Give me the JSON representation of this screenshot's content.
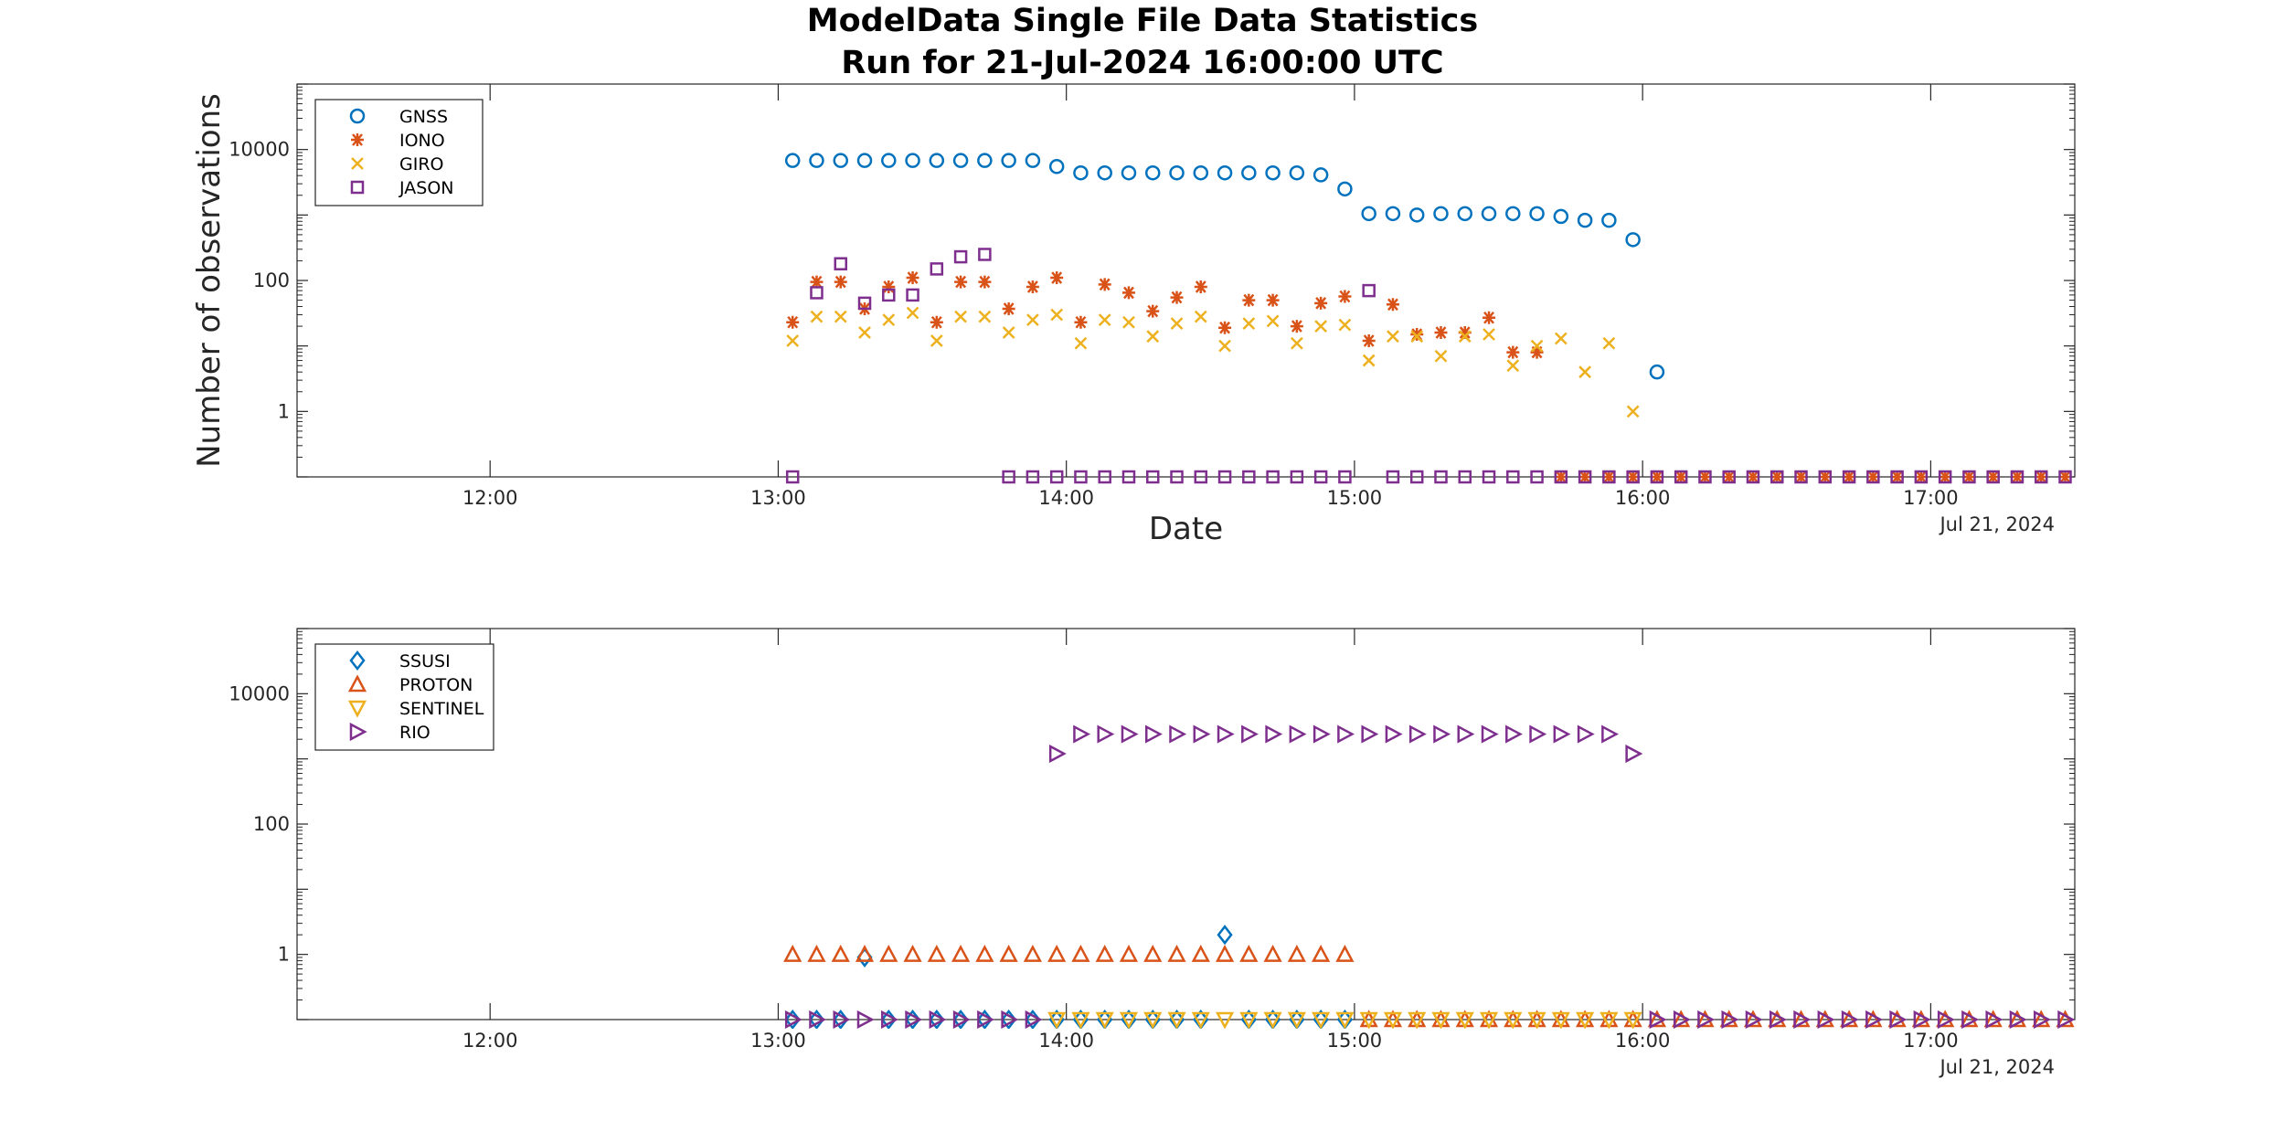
{
  "title": {
    "line1": "ModelData Single File Data Statistics",
    "line2": "Run for 21-Jul-2024 16:00:00 UTC"
  },
  "colors": {
    "blue": "#0072BD",
    "orange": "#D95319",
    "yellow": "#EDB120",
    "purple": "#7E2F8E"
  },
  "chart_data": [
    {
      "type": "scatter",
      "xlabel": "Date",
      "ylabel": "Number of observations",
      "date_label": "Jul 21, 2024",
      "y_scale": "log",
      "x_ticks": [
        "12:00",
        "13:00",
        "14:00",
        "15:00",
        "16:00",
        "17:00"
      ],
      "y_ticks": [
        "1",
        "100",
        "10000"
      ],
      "x_range_hours": [
        11.33,
        17.5
      ],
      "y_range": [
        0.1,
        100000
      ],
      "legend_position": "top-left",
      "series": [
        {
          "name": "GNSS",
          "marker": "circle",
          "color": "#0072BD",
          "x": [
            "13:03",
            "13:08",
            "13:13",
            "13:18",
            "13:23",
            "13:28",
            "13:33",
            "13:38",
            "13:43",
            "13:48",
            "13:53",
            "13:58",
            "14:03",
            "14:08",
            "14:13",
            "14:18",
            "14:23",
            "14:28",
            "14:33",
            "14:38",
            "14:43",
            "14:48",
            "14:53",
            "14:58",
            "15:03",
            "15:08",
            "15:13",
            "15:18",
            "15:23",
            "15:28",
            "15:33",
            "15:38",
            "15:43",
            "15:48",
            "15:53",
            "15:58",
            "16:03"
          ],
          "y": [
            6800,
            6800,
            6800,
            6800,
            6800,
            6800,
            6800,
            6800,
            6800,
            6800,
            6800,
            5500,
            4400,
            4400,
            4400,
            4400,
            4400,
            4400,
            4400,
            4400,
            4400,
            4400,
            4100,
            2500,
            1050,
            1050,
            1000,
            1050,
            1050,
            1050,
            1050,
            1050,
            950,
            830,
            830,
            420,
            4
          ]
        },
        {
          "name": "IONO",
          "marker": "asterisk",
          "color": "#D95319",
          "x": [
            "13:03",
            "13:08",
            "13:13",
            "13:18",
            "13:23",
            "13:28",
            "13:33",
            "13:38",
            "13:43",
            "13:48",
            "13:53",
            "13:58",
            "14:03",
            "14:08",
            "14:13",
            "14:18",
            "14:23",
            "14:28",
            "14:33",
            "14:38",
            "14:43",
            "14:48",
            "14:53",
            "14:58",
            "15:03",
            "15:08",
            "15:13",
            "15:18",
            "15:23",
            "15:28",
            "15:33",
            "15:38",
            "15:43",
            "15:48",
            "15:53",
            "15:58",
            "16:03",
            "16:08",
            "16:13",
            "16:18",
            "16:23",
            "16:28",
            "16:33",
            "16:38",
            "16:43",
            "16:48",
            "16:53",
            "16:58",
            "17:03",
            "17:08",
            "17:13",
            "17:18",
            "17:23",
            "17:28"
          ],
          "y": [
            23,
            95,
            95,
            37,
            80,
            110,
            23,
            95,
            95,
            37,
            80,
            110,
            23,
            87,
            65,
            34,
            55,
            80,
            19,
            50,
            50,
            20,
            45,
            57,
            12,
            43,
            15,
            16,
            16,
            27,
            8,
            8,
            0.1,
            0.1,
            0.1,
            0.1,
            0.1,
            0.1,
            0.1,
            0.1,
            0.1,
            0.1,
            0.1,
            0.1,
            0.1,
            0.1,
            0.1,
            0.1,
            0.1,
            0.1,
            0.1,
            0.1,
            0.1,
            0.1
          ]
        },
        {
          "name": "GIRO",
          "marker": "x",
          "color": "#EDB120",
          "x": [
            "13:03",
            "13:08",
            "13:13",
            "13:18",
            "13:23",
            "13:28",
            "13:33",
            "13:38",
            "13:43",
            "13:48",
            "13:53",
            "13:58",
            "14:03",
            "14:08",
            "14:13",
            "14:18",
            "14:23",
            "14:28",
            "14:33",
            "14:38",
            "14:43",
            "14:48",
            "14:53",
            "14:58",
            "15:03",
            "15:08",
            "15:13",
            "15:18",
            "15:23",
            "15:28",
            "15:33",
            "15:38",
            "15:43",
            "15:48",
            "15:53",
            "15:58"
          ],
          "y": [
            12,
            28,
            28,
            16,
            25,
            32,
            12,
            28,
            28,
            16,
            25,
            30,
            11,
            25,
            23,
            14,
            22,
            28,
            10,
            22,
            24,
            11,
            20,
            21,
            6,
            14,
            14,
            7,
            14,
            15,
            5,
            10,
            13,
            4,
            11,
            1
          ]
        },
        {
          "name": "JASON",
          "marker": "square",
          "color": "#7E2F8E",
          "x": [
            "13:03",
            "13:08",
            "13:13",
            "13:18",
            "13:23",
            "13:28",
            "13:33",
            "13:38",
            "13:43",
            "13:48",
            "13:53",
            "13:58",
            "14:03",
            "14:08",
            "14:13",
            "14:18",
            "14:23",
            "14:28",
            "14:33",
            "14:38",
            "14:43",
            "14:48",
            "14:53",
            "14:58",
            "15:03",
            "15:08",
            "15:13",
            "15:18",
            "15:23",
            "15:28",
            "15:33",
            "15:38",
            "15:43",
            "15:48",
            "15:53",
            "15:58",
            "16:03",
            "16:08",
            "16:13",
            "16:18",
            "16:23",
            "16:28",
            "16:33",
            "16:38",
            "16:43",
            "16:48",
            "16:53",
            "16:58",
            "17:03",
            "17:08",
            "17:13",
            "17:18",
            "17:23",
            "17:28"
          ],
          "y": [
            0.1,
            65,
            180,
            45,
            60,
            60,
            150,
            230,
            250,
            0.1,
            0.1,
            0.1,
            0.1,
            0.1,
            0.1,
            0.1,
            0.1,
            0.1,
            0.1,
            0.1,
            0.1,
            0.1,
            0.1,
            0.1,
            70,
            0.1,
            0.1,
            0.1,
            0.1,
            0.1,
            0.1,
            0.1,
            0.1,
            0.1,
            0.1,
            0.1,
            0.1,
            0.1,
            0.1,
            0.1,
            0.1,
            0.1,
            0.1,
            0.1,
            0.1,
            0.1,
            0.1,
            0.1,
            0.1,
            0.1,
            0.1,
            0.1,
            0.1,
            0.1
          ]
        }
      ]
    },
    {
      "type": "scatter",
      "xlabel": "",
      "ylabel": "",
      "date_label": "Jul 21, 2024",
      "y_scale": "log",
      "x_ticks": [
        "12:00",
        "13:00",
        "14:00",
        "15:00",
        "16:00",
        "17:00"
      ],
      "y_ticks": [
        "1",
        "100",
        "10000"
      ],
      "x_range_hours": [
        11.33,
        17.5
      ],
      "y_range": [
        0.1,
        100000
      ],
      "legend_position": "top-left",
      "series": [
        {
          "name": "SSUSI",
          "marker": "diamond",
          "color": "#0072BD",
          "x": [
            "13:03",
            "13:08",
            "13:13",
            "13:18",
            "13:23",
            "13:28",
            "13:33",
            "13:38",
            "13:43",
            "13:48",
            "13:53",
            "13:58",
            "14:03",
            "14:08",
            "14:13",
            "14:18",
            "14:23",
            "14:28",
            "14:33",
            "14:38",
            "14:43",
            "14:48",
            "14:53",
            "14:58"
          ],
          "y": [
            0.1,
            0.1,
            0.1,
            0.9,
            0.1,
            0.1,
            0.1,
            0.1,
            0.1,
            0.1,
            0.1,
            0.1,
            0.1,
            0.1,
            0.1,
            0.1,
            0.1,
            0.1,
            2,
            0.1,
            0.1,
            0.1,
            0.1,
            0.1
          ]
        },
        {
          "name": "PROTON",
          "marker": "triangle-up",
          "color": "#D95319",
          "x": [
            "13:03",
            "13:08",
            "13:13",
            "13:18",
            "13:23",
            "13:28",
            "13:33",
            "13:38",
            "13:43",
            "13:48",
            "13:53",
            "13:58",
            "14:03",
            "14:08",
            "14:13",
            "14:18",
            "14:23",
            "14:28",
            "14:33",
            "14:38",
            "14:43",
            "14:48",
            "14:53",
            "14:58",
            "15:03",
            "15:08",
            "15:13",
            "15:18",
            "15:23",
            "15:28",
            "15:33",
            "15:38",
            "15:43",
            "15:48",
            "15:53",
            "15:58",
            "16:03",
            "16:08",
            "16:13",
            "16:18",
            "16:23",
            "16:28",
            "16:33",
            "16:38",
            "16:43",
            "16:48",
            "16:53",
            "16:58",
            "17:03",
            "17:08",
            "17:13",
            "17:18",
            "17:23",
            "17:28"
          ],
          "y": [
            1,
            1,
            1,
            1,
            1,
            1,
            1,
            1,
            1,
            1,
            1,
            1,
            1,
            1,
            1,
            1,
            1,
            1,
            1,
            1,
            1,
            1,
            1,
            1,
            0.1,
            0.1,
            0.1,
            0.1,
            0.1,
            0.1,
            0.1,
            0.1,
            0.1,
            0.1,
            0.1,
            0.1,
            0.1,
            0.1,
            0.1,
            0.1,
            0.1,
            0.1,
            0.1,
            0.1,
            0.1,
            0.1,
            0.1,
            0.1,
            0.1,
            0.1,
            0.1,
            0.1,
            0.1,
            0.1
          ]
        },
        {
          "name": "SENTINEL",
          "marker": "triangle-down",
          "color": "#EDB120",
          "x": [
            "13:58",
            "14:03",
            "14:08",
            "14:13",
            "14:18",
            "14:23",
            "14:28",
            "14:33",
            "14:38",
            "14:43",
            "14:48",
            "14:53",
            "14:58",
            "15:03",
            "15:08",
            "15:13",
            "15:18",
            "15:23",
            "15:28",
            "15:33",
            "15:38",
            "15:43",
            "15:48",
            "15:53",
            "15:58"
          ],
          "y": [
            0.1,
            0.1,
            0.1,
            0.1,
            0.1,
            0.1,
            0.1,
            0.1,
            0.1,
            0.1,
            0.1,
            0.1,
            0.1,
            0.1,
            0.1,
            0.1,
            0.1,
            0.1,
            0.1,
            0.1,
            0.1,
            0.1,
            0.1,
            0.1,
            0.1
          ]
        },
        {
          "name": "RIO",
          "marker": "triangle-right",
          "color": "#7E2F8E",
          "x": [
            "13:03",
            "13:08",
            "13:13",
            "13:18",
            "13:23",
            "13:28",
            "13:33",
            "13:38",
            "13:43",
            "13:48",
            "13:53",
            "13:58",
            "14:03",
            "14:08",
            "14:13",
            "14:18",
            "14:23",
            "14:28",
            "14:33",
            "14:38",
            "14:43",
            "14:48",
            "14:53",
            "14:58",
            "15:03",
            "15:08",
            "15:13",
            "15:18",
            "15:23",
            "15:28",
            "15:33",
            "15:38",
            "15:43",
            "15:48",
            "15:53",
            "15:58",
            "16:03",
            "16:08",
            "16:13",
            "16:18",
            "16:23",
            "16:28",
            "16:33",
            "16:38",
            "16:43",
            "16:48",
            "16:53",
            "16:58",
            "17:03",
            "17:08",
            "17:13",
            "17:18",
            "17:23",
            "17:28"
          ],
          "y": [
            0.1,
            0.1,
            0.1,
            0.1,
            0.1,
            0.1,
            0.1,
            0.1,
            0.1,
            0.1,
            0.1,
            1200,
            2400,
            2400,
            2400,
            2400,
            2400,
            2400,
            2400,
            2400,
            2400,
            2400,
            2400,
            2400,
            2400,
            2400,
            2400,
            2400,
            2400,
            2400,
            2400,
            2400,
            2400,
            2400,
            2400,
            1200,
            0.1,
            0.1,
            0.1,
            0.1,
            0.1,
            0.1,
            0.1,
            0.1,
            0.1,
            0.1,
            0.1,
            0.1,
            0.1,
            0.1,
            0.1,
            0.1,
            0.1,
            0.1
          ]
        }
      ]
    }
  ]
}
